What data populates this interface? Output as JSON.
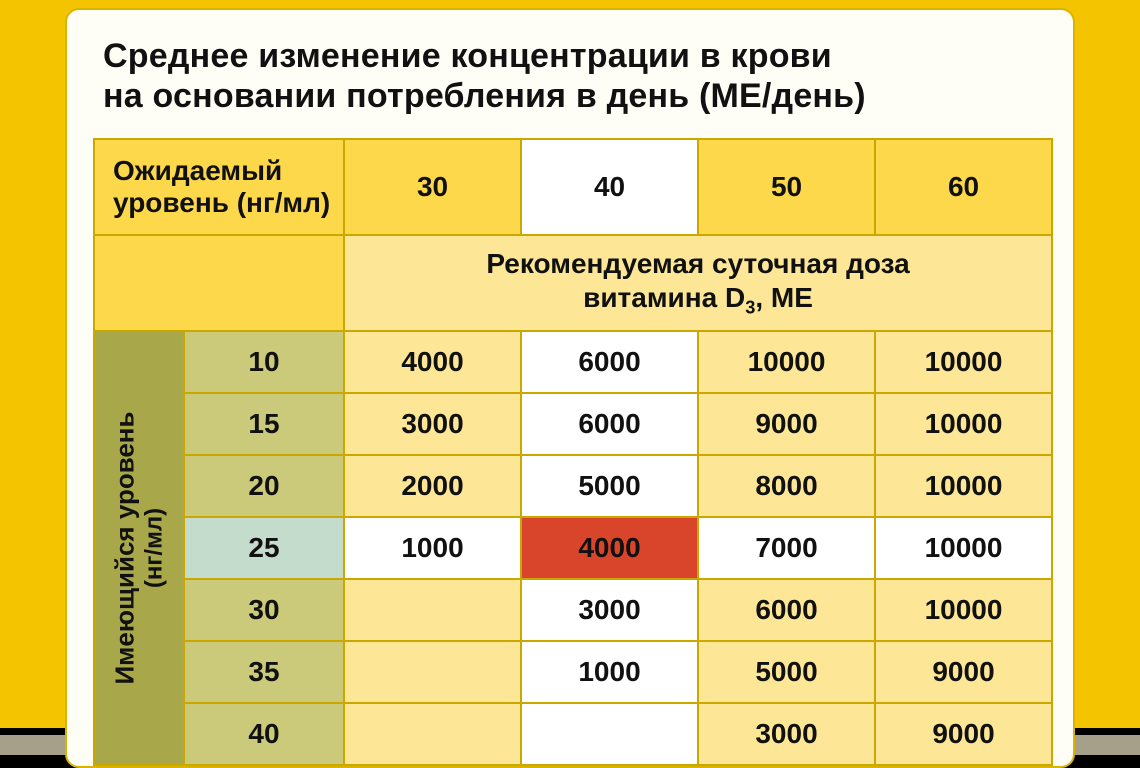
{
  "title_line1": "Среднее изменение концентрации в крови",
  "title_line2": "на основании потребления в день (МЕ/день)",
  "header_expected_l1": "Ожидаемый",
  "header_expected_l2": "уровень (нг/мл)",
  "header_rec_l1": "Рекомендуемая суточная доза",
  "header_rec_l2_a": "витамина D",
  "header_rec_l2_b": "3",
  "header_rec_l2_c": ", МЕ",
  "side_label_l1": "Имеющийся уровень",
  "side_label_l2": "(нг/мл)",
  "columns": [
    "30",
    "40",
    "50",
    "60"
  ],
  "row_levels": [
    "10",
    "15",
    "20",
    "25",
    "30",
    "35",
    "40"
  ],
  "values": [
    [
      "4000",
      "6000",
      "10000",
      "10000"
    ],
    [
      "3000",
      "6000",
      "9000",
      "10000"
    ],
    [
      "2000",
      "5000",
      "8000",
      "10000"
    ],
    [
      "1000",
      "4000",
      "7000",
      "10000"
    ],
    [
      "",
      "3000",
      "6000",
      "10000"
    ],
    [
      "",
      "1000",
      "5000",
      "9000"
    ],
    [
      "",
      "",
      "3000",
      "9000"
    ]
  ],
  "colors": {
    "page_bg": "#f5c400",
    "card_bg": "#fffef6",
    "border": "#caa800",
    "header_fill": "#fcd84a",
    "header_highlight_col": "#ffffff",
    "sub_header_fill": "#fde797",
    "sub_header_left_fill": "#fcd84a",
    "side_fill": "#a8a84a",
    "level_col_fill": "#cbca7a",
    "value_cell_fill": "#fde797",
    "value_cell_highlight_col": "#ffffff",
    "highlight_row_side": "#c4dccb",
    "highlight_row_value": "#ffffff",
    "highlight_cell_bg": "#d9452b",
    "highlight_cell_text": "#111111"
  },
  "highlight": {
    "row": 3,
    "col": 1,
    "col_header_highlight": 1
  },
  "font_sizes": {
    "title": 34,
    "header": 27,
    "cell": 28,
    "side": 26
  }
}
